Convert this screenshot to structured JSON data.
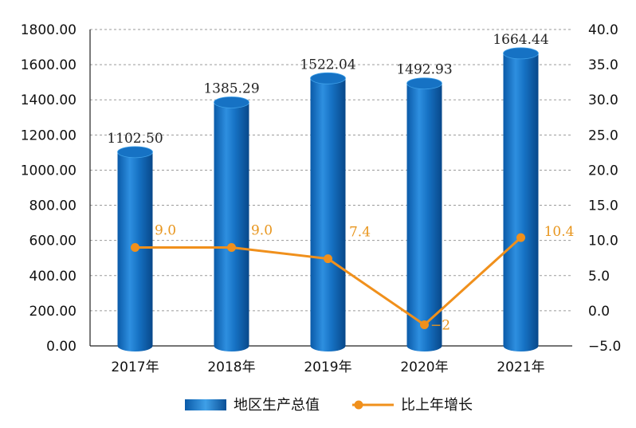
{
  "chart_data": {
    "type": "bar",
    "categories": [
      "2017年",
      "2018年",
      "2019年",
      "2020年",
      "2021年"
    ],
    "series": [
      {
        "name": "地区生产总值",
        "type": "bar",
        "axis": "left",
        "values": [
          1102.5,
          1385.29,
          1522.04,
          1492.93,
          1664.44
        ],
        "labels": [
          "1102.50",
          "1385.29",
          "1522.04",
          "1492.93",
          "1664.44"
        ]
      },
      {
        "name": "比上年增长",
        "type": "line",
        "axis": "right",
        "values": [
          9.0,
          9.0,
          7.4,
          -2,
          10.4
        ],
        "labels": [
          "9.0",
          "9.0",
          "7.4",
          "−2",
          "10.4"
        ]
      }
    ],
    "y_left": {
      "ylim": [
        0,
        1800
      ],
      "ticks": [
        "0.00",
        "200.00",
        "400.00",
        "600.00",
        "800.00",
        "1000.00",
        "1200.00",
        "1400.00",
        "1600.00",
        "1800.00"
      ]
    },
    "y_right": {
      "ylim": [
        -5,
        40
      ],
      "ticks": [
        "−5.0",
        "0.0",
        "5.0",
        "10.0",
        "15.0",
        "20.0",
        "25.0",
        "30.0",
        "35.0",
        "40.0"
      ]
    },
    "grid": true,
    "grid_style": "dashed",
    "legend_position": "bottom",
    "colors": {
      "bar": "#1672c4",
      "bar_dark": "#0a4f96",
      "bar_light": "#3fa0e8",
      "line": "#f0901c",
      "line_label": "#e8961e",
      "grid": "#9a9a9a"
    }
  }
}
